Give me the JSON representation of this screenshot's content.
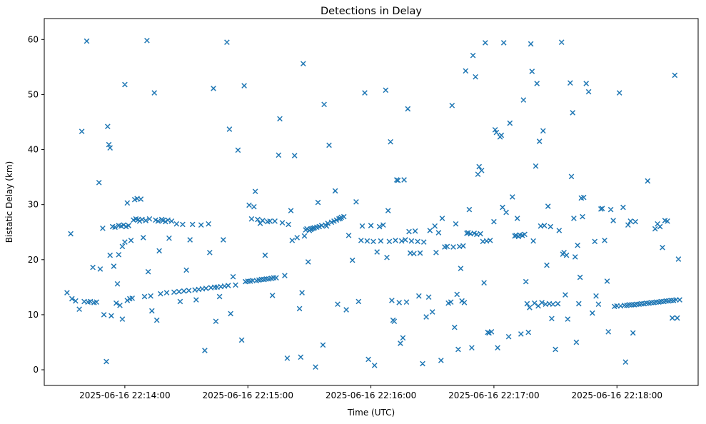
{
  "chart_data": {
    "type": "scatter",
    "title": "Detections in Delay",
    "xlabel": "Time (UTC)",
    "ylabel": "Bistatic Delay (km)",
    "marker": "x",
    "marker_color": "#1f77b4",
    "background_color": "#ffffff",
    "axis_color": "#000000",
    "grid": false,
    "legend": null,
    "x_unit": "minutes after 2025-06-16 22:14:00 UTC",
    "xlim": [
      -0.655,
      4.66
    ],
    "ylim": [
      -2.85,
      63.8
    ],
    "x_ticks": [
      {
        "pos": 0,
        "label": "2025-06-16 22:14:00"
      },
      {
        "pos": 1,
        "label": "2025-06-16 22:15:00"
      },
      {
        "pos": 2,
        "label": "2025-06-16 22:16:00"
      },
      {
        "pos": 3,
        "label": "2025-06-16 22:17:00"
      },
      {
        "pos": 4,
        "label": "2025-06-16 22:18:00"
      }
    ],
    "y_ticks": [
      0,
      10,
      20,
      30,
      40,
      50,
      60
    ],
    "points": [
      [
        -0.47,
        14.0
      ],
      [
        -0.44,
        24.7
      ],
      [
        -0.43,
        12.9
      ],
      [
        -0.4,
        12.5
      ],
      [
        -0.37,
        11.0
      ],
      [
        -0.35,
        43.3
      ],
      [
        -0.33,
        12.4
      ],
      [
        -0.31,
        59.7
      ],
      [
        -0.3,
        12.3
      ],
      [
        -0.28,
        12.4
      ],
      [
        -0.26,
        18.6
      ],
      [
        -0.25,
        12.2
      ],
      [
        -0.23,
        12.3
      ],
      [
        -0.21,
        34.0
      ],
      [
        -0.2,
        18.3
      ],
      [
        -0.18,
        25.7
      ],
      [
        -0.17,
        10.0
      ],
      [
        -0.15,
        1.5
      ],
      [
        -0.14,
        44.2
      ],
      [
        -0.13,
        40.9
      ],
      [
        -0.12,
        40.3
      ],
      [
        -0.12,
        20.8
      ],
      [
        -0.11,
        9.8
      ],
      [
        -0.1,
        26.0
      ],
      [
        -0.09,
        18.8
      ],
      [
        -0.08,
        25.9
      ],
      [
        -0.07,
        12.1
      ],
      [
        -0.06,
        15.6
      ],
      [
        -0.05,
        26.2
      ],
      [
        -0.05,
        20.9
      ],
      [
        -0.04,
        11.7
      ],
      [
        -0.03,
        26.1
      ],
      [
        -0.02,
        9.2
      ],
      [
        -0.02,
        22.4
      ],
      [
        -0.01,
        26.3
      ],
      [
        0.0,
        51.8
      ],
      [
        0.0,
        23.2
      ],
      [
        0.01,
        26.0
      ],
      [
        0.02,
        12.6
      ],
      [
        0.02,
        30.3
      ],
      [
        0.03,
        26.2
      ],
      [
        0.04,
        12.9
      ],
      [
        0.05,
        23.5
      ],
      [
        0.06,
        13.0
      ],
      [
        0.07,
        27.2
      ],
      [
        0.08,
        30.9
      ],
      [
        0.09,
        27.4
      ],
      [
        0.1,
        31.1
      ],
      [
        0.11,
        27.3
      ],
      [
        0.12,
        27.0
      ],
      [
        0.13,
        31.0
      ],
      [
        0.14,
        27.3
      ],
      [
        0.15,
        24.0
      ],
      [
        0.16,
        13.3
      ],
      [
        0.17,
        27.1
      ],
      [
        0.18,
        59.8
      ],
      [
        0.19,
        17.8
      ],
      [
        0.2,
        27.4
      ],
      [
        0.21,
        13.4
      ],
      [
        0.22,
        10.7
      ],
      [
        0.24,
        50.3
      ],
      [
        0.25,
        27.2
      ],
      [
        0.26,
        9.0
      ],
      [
        0.27,
        27.0
      ],
      [
        0.28,
        21.6
      ],
      [
        0.29,
        13.8
      ],
      [
        0.3,
        27.3
      ],
      [
        0.31,
        27.1
      ],
      [
        0.33,
        26.9
      ],
      [
        0.34,
        14.0
      ],
      [
        0.35,
        27.2
      ],
      [
        0.36,
        23.9
      ],
      [
        0.38,
        27.0
      ],
      [
        0.4,
        14.1
      ],
      [
        0.42,
        26.5
      ],
      [
        0.44,
        14.2
      ],
      [
        0.45,
        12.4
      ],
      [
        0.47,
        26.4
      ],
      [
        0.48,
        14.3
      ],
      [
        0.5,
        18.1
      ],
      [
        0.52,
        14.4
      ],
      [
        0.53,
        23.6
      ],
      [
        0.55,
        26.4
      ],
      [
        0.57,
        14.5
      ],
      [
        0.58,
        12.7
      ],
      [
        0.6,
        14.6
      ],
      [
        0.62,
        26.3
      ],
      [
        0.63,
        14.7
      ],
      [
        0.65,
        3.5
      ],
      [
        0.66,
        14.8
      ],
      [
        0.68,
        26.5
      ],
      [
        0.69,
        21.3
      ],
      [
        0.7,
        14.9
      ],
      [
        0.72,
        51.1
      ],
      [
        0.73,
        15.0
      ],
      [
        0.74,
        8.8
      ],
      [
        0.75,
        15.0
      ],
      [
        0.77,
        13.3
      ],
      [
        0.78,
        15.1
      ],
      [
        0.8,
        23.6
      ],
      [
        0.81,
        15.2
      ],
      [
        0.83,
        59.5
      ],
      [
        0.84,
        15.3
      ],
      [
        0.85,
        43.7
      ],
      [
        0.86,
        10.2
      ],
      [
        0.88,
        16.9
      ],
      [
        0.9,
        15.4
      ],
      [
        0.92,
        39.9
      ],
      [
        0.95,
        5.4
      ],
      [
        0.97,
        51.6
      ],
      [
        0.98,
        16.0
      ],
      [
        1.0,
        16.1
      ],
      [
        1.01,
        29.9
      ],
      [
        1.02,
        16.1
      ],
      [
        1.03,
        27.4
      ],
      [
        1.04,
        16.2
      ],
      [
        1.05,
        29.6
      ],
      [
        1.06,
        32.4
      ],
      [
        1.07,
        16.2
      ],
      [
        1.08,
        27.3
      ],
      [
        1.09,
        16.3
      ],
      [
        1.1,
        26.6
      ],
      [
        1.11,
        16.4
      ],
      [
        1.12,
        27.1
      ],
      [
        1.13,
        16.4
      ],
      [
        1.14,
        20.8
      ],
      [
        1.15,
        16.5
      ],
      [
        1.16,
        26.9
      ],
      [
        1.17,
        16.5
      ],
      [
        1.18,
        27.0
      ],
      [
        1.19,
        16.6
      ],
      [
        1.2,
        13.5
      ],
      [
        1.21,
        16.7
      ],
      [
        1.22,
        27.0
      ],
      [
        1.23,
        16.7
      ],
      [
        1.25,
        39.0
      ],
      [
        1.26,
        45.6
      ],
      [
        1.28,
        26.7
      ],
      [
        1.3,
        17.1
      ],
      [
        1.32,
        2.1
      ],
      [
        1.33,
        26.4
      ],
      [
        1.35,
        28.9
      ],
      [
        1.36,
        23.5
      ],
      [
        1.38,
        38.9
      ],
      [
        1.4,
        24.0
      ],
      [
        1.42,
        11.1
      ],
      [
        1.43,
        2.3
      ],
      [
        1.44,
        14.0
      ],
      [
        1.45,
        55.6
      ],
      [
        1.46,
        24.3
      ],
      [
        1.47,
        25.4
      ],
      [
        1.48,
        25.6
      ],
      [
        1.49,
        19.6
      ],
      [
        1.5,
        25.3
      ],
      [
        1.51,
        25.5
      ],
      [
        1.52,
        25.6
      ],
      [
        1.53,
        25.7
      ],
      [
        1.54,
        25.8
      ],
      [
        1.55,
        0.5
      ],
      [
        1.56,
        25.9
      ],
      [
        1.57,
        30.4
      ],
      [
        1.58,
        26.0
      ],
      [
        1.6,
        26.2
      ],
      [
        1.61,
        4.5
      ],
      [
        1.62,
        48.2
      ],
      [
        1.63,
        26.3
      ],
      [
        1.64,
        26.1
      ],
      [
        1.65,
        26.6
      ],
      [
        1.66,
        40.8
      ],
      [
        1.68,
        26.8
      ],
      [
        1.7,
        27.0
      ],
      [
        1.71,
        32.5
      ],
      [
        1.72,
        27.2
      ],
      [
        1.73,
        11.9
      ],
      [
        1.74,
        27.4
      ],
      [
        1.75,
        27.5
      ],
      [
        1.76,
        27.7
      ],
      [
        1.78,
        27.8
      ],
      [
        1.8,
        10.9
      ],
      [
        1.82,
        24.4
      ],
      [
        1.85,
        19.9
      ],
      [
        1.88,
        30.5
      ],
      [
        1.9,
        12.4
      ],
      [
        1.92,
        23.5
      ],
      [
        1.93,
        26.1
      ],
      [
        1.95,
        50.3
      ],
      [
        1.97,
        23.4
      ],
      [
        1.98,
        1.9
      ],
      [
        2.0,
        26.2
      ],
      [
        2.02,
        23.3
      ],
      [
        2.03,
        0.8
      ],
      [
        2.05,
        21.4
      ],
      [
        2.07,
        26.0
      ],
      [
        2.08,
        23.4
      ],
      [
        2.1,
        26.3
      ],
      [
        2.12,
        50.8
      ],
      [
        2.13,
        20.4
      ],
      [
        2.14,
        28.9
      ],
      [
        2.15,
        23.3
      ],
      [
        2.16,
        41.4
      ],
      [
        2.17,
        12.6
      ],
      [
        2.18,
        9.0
      ],
      [
        2.19,
        8.8
      ],
      [
        2.2,
        23.5
      ],
      [
        2.21,
        34.5
      ],
      [
        2.22,
        34.4
      ],
      [
        2.23,
        12.2
      ],
      [
        2.24,
        4.8
      ],
      [
        2.25,
        23.4
      ],
      [
        2.26,
        5.8
      ],
      [
        2.27,
        34.5
      ],
      [
        2.28,
        23.6
      ],
      [
        2.29,
        12.3
      ],
      [
        2.3,
        47.4
      ],
      [
        2.31,
        25.1
      ],
      [
        2.32,
        21.2
      ],
      [
        2.33,
        23.4
      ],
      [
        2.35,
        21.1
      ],
      [
        2.36,
        25.2
      ],
      [
        2.38,
        23.3
      ],
      [
        2.39,
        13.4
      ],
      [
        2.4,
        21.2
      ],
      [
        2.42,
        1.1
      ],
      [
        2.43,
        23.2
      ],
      [
        2.45,
        9.6
      ],
      [
        2.47,
        13.2
      ],
      [
        2.48,
        25.3
      ],
      [
        2.5,
        10.5
      ],
      [
        2.52,
        26.1
      ],
      [
        2.53,
        21.3
      ],
      [
        2.55,
        24.9
      ],
      [
        2.57,
        1.7
      ],
      [
        2.58,
        27.5
      ],
      [
        2.6,
        22.3
      ],
      [
        2.62,
        22.4
      ],
      [
        2.63,
        12.1
      ],
      [
        2.65,
        12.3
      ],
      [
        2.66,
        48.0
      ],
      [
        2.67,
        22.3
      ],
      [
        2.68,
        7.7
      ],
      [
        2.69,
        26.5
      ],
      [
        2.7,
        13.7
      ],
      [
        2.71,
        3.7
      ],
      [
        2.72,
        22.4
      ],
      [
        2.73,
        18.4
      ],
      [
        2.74,
        12.5
      ],
      [
        2.75,
        22.5
      ],
      [
        2.76,
        12.2
      ],
      [
        2.77,
        54.3
      ],
      [
        2.78,
        24.8
      ],
      [
        2.79,
        24.9
      ],
      [
        2.8,
        29.1
      ],
      [
        2.81,
        24.7
      ],
      [
        2.82,
        4.0
      ],
      [
        2.83,
        57.1
      ],
      [
        2.84,
        24.8
      ],
      [
        2.85,
        53.2
      ],
      [
        2.86,
        24.6
      ],
      [
        2.87,
        35.5
      ],
      [
        2.88,
        36.9
      ],
      [
        2.89,
        24.7
      ],
      [
        2.9,
        36.2
      ],
      [
        2.91,
        23.3
      ],
      [
        2.92,
        15.8
      ],
      [
        2.93,
        59.4
      ],
      [
        2.94,
        23.4
      ],
      [
        2.95,
        6.8
      ],
      [
        2.96,
        6.7
      ],
      [
        2.97,
        23.5
      ],
      [
        2.98,
        6.9
      ],
      [
        3.0,
        26.9
      ],
      [
        3.01,
        43.6
      ],
      [
        3.02,
        43.1
      ],
      [
        3.03,
        4.0
      ],
      [
        3.05,
        42.3
      ],
      [
        3.06,
        42.6
      ],
      [
        3.07,
        29.5
      ],
      [
        3.08,
        59.4
      ],
      [
        3.1,
        28.6
      ],
      [
        3.12,
        6.0
      ],
      [
        3.13,
        44.8
      ],
      [
        3.15,
        31.4
      ],
      [
        3.17,
        24.3
      ],
      [
        3.18,
        24.4
      ],
      [
        3.19,
        27.5
      ],
      [
        3.2,
        24.2
      ],
      [
        3.21,
        24.5
      ],
      [
        3.22,
        6.5
      ],
      [
        3.23,
        24.4
      ],
      [
        3.24,
        49.0
      ],
      [
        3.25,
        24.6
      ],
      [
        3.26,
        16.0
      ],
      [
        3.27,
        12.0
      ],
      [
        3.28,
        6.8
      ],
      [
        3.29,
        11.3
      ],
      [
        3.3,
        59.2
      ],
      [
        3.31,
        54.2
      ],
      [
        3.32,
        23.4
      ],
      [
        3.33,
        12.1
      ],
      [
        3.34,
        37.0
      ],
      [
        3.35,
        52.0
      ],
      [
        3.36,
        11.6
      ],
      [
        3.37,
        41.5
      ],
      [
        3.38,
        26.1
      ],
      [
        3.39,
        12.2
      ],
      [
        3.4,
        43.4
      ],
      [
        3.41,
        26.2
      ],
      [
        3.42,
        11.9
      ],
      [
        3.43,
        19.0
      ],
      [
        3.44,
        29.7
      ],
      [
        3.45,
        12.0
      ],
      [
        3.46,
        26.0
      ],
      [
        3.47,
        9.3
      ],
      [
        3.48,
        11.9
      ],
      [
        3.5,
        3.7
      ],
      [
        3.52,
        12.0
      ],
      [
        3.53,
        25.3
      ],
      [
        3.55,
        59.5
      ],
      [
        3.56,
        21.0
      ],
      [
        3.57,
        21.3
      ],
      [
        3.58,
        13.6
      ],
      [
        3.59,
        20.8
      ],
      [
        3.6,
        9.2
      ],
      [
        3.62,
        52.1
      ],
      [
        3.63,
        35.1
      ],
      [
        3.64,
        46.7
      ],
      [
        3.65,
        27.5
      ],
      [
        3.66,
        20.5
      ],
      [
        3.67,
        5.0
      ],
      [
        3.68,
        22.6
      ],
      [
        3.69,
        12.0
      ],
      [
        3.7,
        16.8
      ],
      [
        3.71,
        31.2
      ],
      [
        3.72,
        27.8
      ],
      [
        3.73,
        31.3
      ],
      [
        3.75,
        52.0
      ],
      [
        3.77,
        50.5
      ],
      [
        3.8,
        10.3
      ],
      [
        3.82,
        23.3
      ],
      [
        3.83,
        13.4
      ],
      [
        3.85,
        11.9
      ],
      [
        3.87,
        29.2
      ],
      [
        3.88,
        29.3
      ],
      [
        3.9,
        23.5
      ],
      [
        3.92,
        16.1
      ],
      [
        3.93,
        6.9
      ],
      [
        3.95,
        29.1
      ],
      [
        3.97,
        27.1
      ],
      [
        3.98,
        11.5
      ],
      [
        4.0,
        11.6
      ],
      [
        4.02,
        50.3
      ],
      [
        4.03,
        11.6
      ],
      [
        4.05,
        29.5
      ],
      [
        4.06,
        11.7
      ],
      [
        4.07,
        1.4
      ],
      [
        4.08,
        11.7
      ],
      [
        4.09,
        26.3
      ],
      [
        4.1,
        11.8
      ],
      [
        4.11,
        27.0
      ],
      [
        4.12,
        11.8
      ],
      [
        4.13,
        6.7
      ],
      [
        4.14,
        11.8
      ],
      [
        4.15,
        26.9
      ],
      [
        4.16,
        11.9
      ],
      [
        4.18,
        11.9
      ],
      [
        4.2,
        12.0
      ],
      [
        4.22,
        12.0
      ],
      [
        4.24,
        12.1
      ],
      [
        4.25,
        34.3
      ],
      [
        4.26,
        12.1
      ],
      [
        4.28,
        12.2
      ],
      [
        4.3,
        12.2
      ],
      [
        4.31,
        25.6
      ],
      [
        4.32,
        12.3
      ],
      [
        4.33,
        26.5
      ],
      [
        4.34,
        12.3
      ],
      [
        4.35,
        26.0
      ],
      [
        4.36,
        12.4
      ],
      [
        4.37,
        22.2
      ],
      [
        4.38,
        12.4
      ],
      [
        4.39,
        27.1
      ],
      [
        4.4,
        12.5
      ],
      [
        4.41,
        27.0
      ],
      [
        4.42,
        12.5
      ],
      [
        4.44,
        12.6
      ],
      [
        4.45,
        9.4
      ],
      [
        4.46,
        12.6
      ],
      [
        4.47,
        53.5
      ],
      [
        4.48,
        12.7
      ],
      [
        4.49,
        9.4
      ],
      [
        4.5,
        20.1
      ],
      [
        4.51,
        12.7
      ]
    ]
  }
}
